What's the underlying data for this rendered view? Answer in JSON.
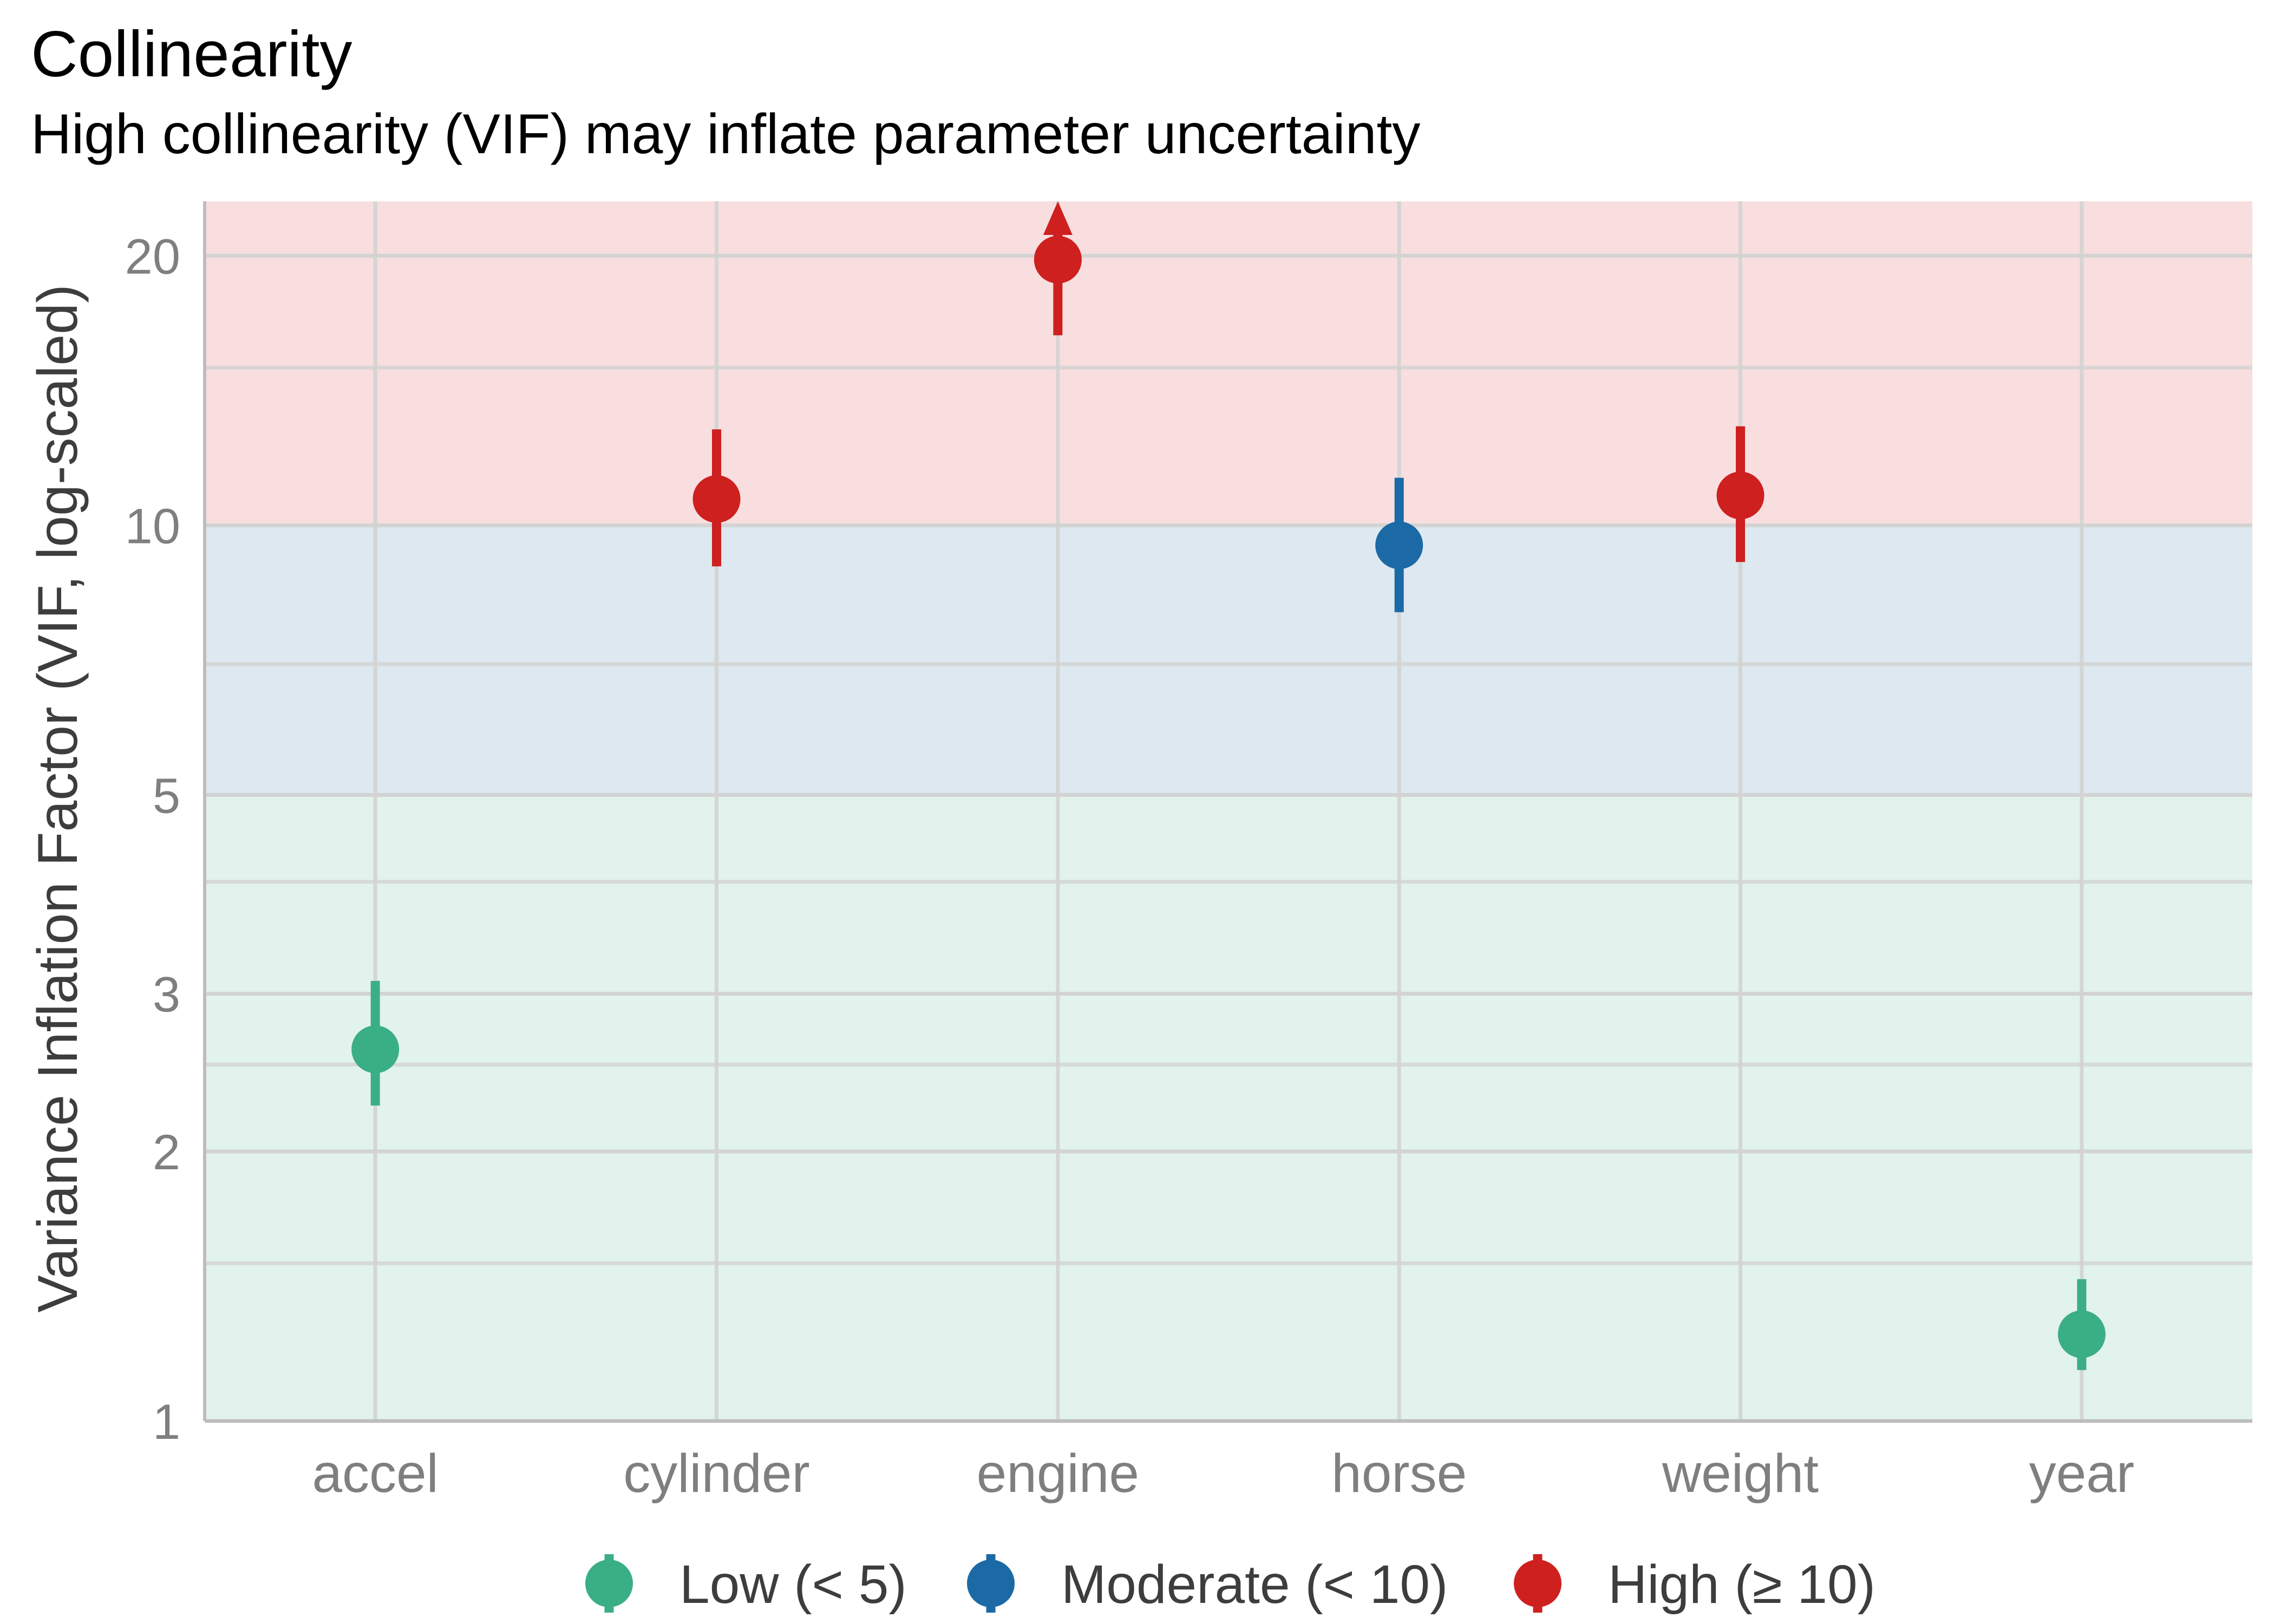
{
  "title": "Collinearity",
  "subtitle": "High collinearity (VIF) may inflate parameter uncertainty",
  "colors": {
    "low": "#3aaf85",
    "moderate": "#1b6aa5",
    "high": "#cd201f",
    "band_low": "#e2f2ec",
    "band_moderate": "#dde8f0",
    "band_high": "#f8dedf",
    "grid": "#d3d3d3",
    "axis_text": "#7f7f7f",
    "axis_title": "#3d3d3d"
  },
  "legend": [
    {
      "key": "low",
      "label": "Low (< 5)"
    },
    {
      "key": "moderate",
      "label": "Moderate (< 10)"
    },
    {
      "key": "high",
      "label": "High (≥ 10)"
    }
  ],
  "chart_data": {
    "type": "scatter",
    "title": "Collinearity",
    "subtitle": "High collinearity (VIF) may inflate parameter uncertainty",
    "xlabel": "",
    "ylabel": "Variance Inflation Factor (VIF, log-scaled)",
    "y_scale": "log",
    "ylim": [
      1,
      23
    ],
    "y_ticks": [
      1,
      2,
      3,
      5,
      10,
      20
    ],
    "y_minor_gridlines": [
      1.5,
      2.5,
      4,
      7,
      15
    ],
    "grid": true,
    "legend_position": "bottom",
    "bands": [
      {
        "from": 1,
        "to": 5,
        "category": "low"
      },
      {
        "from": 5,
        "to": 10,
        "category": "moderate"
      },
      {
        "from": 10,
        "to": 23,
        "category": "high"
      }
    ],
    "categories": [
      "accel",
      "cylinder",
      "engine",
      "horse",
      "weight",
      "year"
    ],
    "points": [
      {
        "x": "accel",
        "vif": 2.6,
        "ci_low": 2.25,
        "ci_high": 3.1,
        "group": "low",
        "truncated": false
      },
      {
        "x": "cylinder",
        "vif": 10.7,
        "ci_low": 9.0,
        "ci_high": 12.8,
        "group": "high",
        "truncated": false
      },
      {
        "x": "engine",
        "vif": 19.8,
        "ci_low": 16.3,
        "ci_high": 23,
        "group": "high",
        "truncated": true
      },
      {
        "x": "horse",
        "vif": 9.5,
        "ci_low": 8.0,
        "ci_high": 11.3,
        "group": "moderate",
        "truncated": false
      },
      {
        "x": "weight",
        "vif": 10.8,
        "ci_low": 9.1,
        "ci_high": 12.9,
        "group": "high",
        "truncated": false
      },
      {
        "x": "year",
        "vif": 1.25,
        "ci_low": 1.14,
        "ci_high": 1.44,
        "group": "low",
        "truncated": false
      }
    ]
  }
}
